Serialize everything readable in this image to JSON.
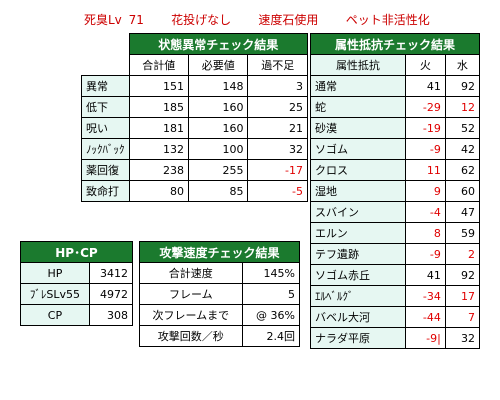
{
  "caption": {
    "char": "死臭Lv 71",
    "opt1": "花投げなし",
    "opt2": "速度石使用",
    "opt3": "ペット非活性化"
  },
  "status": {
    "title": "状態異常チェック結果",
    "headers": [
      "",
      "合計値",
      "必要値",
      "過不足"
    ],
    "rows": [
      {
        "name": "異常",
        "total": "151",
        "need": "148",
        "diff": "3",
        "neg": false
      },
      {
        "name": "低下",
        "total": "185",
        "need": "160",
        "diff": "25",
        "neg": false
      },
      {
        "name": "呪い",
        "total": "181",
        "need": "160",
        "diff": "21",
        "neg": false
      },
      {
        "name": "ﾉｯｸﾊﾞｯｸ",
        "total": "132",
        "need": "100",
        "diff": "32",
        "neg": false
      },
      {
        "name": "薬回復",
        "total": "238",
        "need": "255",
        "diff": "-17",
        "neg": true
      },
      {
        "name": "致命打",
        "total": "80",
        "need": "85",
        "diff": "-5",
        "neg": true
      }
    ]
  },
  "resist": {
    "title": "属性抵抗チェック結果",
    "headers": [
      "属性抵抗",
      "火",
      "水"
    ],
    "rows": [
      {
        "name": "通常",
        "fire": "41",
        "water": "92",
        "fneg": false,
        "wneg": false
      },
      {
        "name": "蛇",
        "fire": "-29",
        "water": "12",
        "fneg": true,
        "wneg": true
      },
      {
        "name": "砂漠",
        "fire": "-19",
        "water": "52",
        "fneg": true,
        "wneg": false
      },
      {
        "name": "ソゴム",
        "fire": "-9",
        "water": "42",
        "fneg": true,
        "wneg": false
      },
      {
        "name": "クロス",
        "fire": "11",
        "water": "62",
        "fneg": true,
        "wneg": false
      },
      {
        "name": "湿地",
        "fire": "9",
        "water": "60",
        "fneg": true,
        "wneg": false
      },
      {
        "name": "スバイン",
        "fire": "-4",
        "water": "47",
        "fneg": true,
        "wneg": false
      },
      {
        "name": "エルン",
        "fire": "8",
        "water": "59",
        "fneg": true,
        "wneg": false
      },
      {
        "name": "テフ遺跡",
        "fire": "-9",
        "water": "2",
        "fneg": true,
        "wneg": true
      },
      {
        "name": "ソゴム赤丘",
        "fire": "41",
        "water": "92",
        "fneg": false,
        "wneg": false
      },
      {
        "name": "ｴﾙﾍﾞﾙｸﾞ",
        "fire": "-34",
        "water": "17",
        "fneg": true,
        "wneg": true
      },
      {
        "name": "バベル大河",
        "fire": "-44",
        "water": "7",
        "fneg": true,
        "wneg": true
      },
      {
        "name": "ナラダ平原",
        "fire": "-9|",
        "water": "32",
        "fneg": true,
        "wneg": false
      }
    ]
  },
  "hpcp": {
    "title": "HP･CP",
    "rows": [
      {
        "name": "HP",
        "value": "3412"
      },
      {
        "name": "ﾌﾞﾚSLv55",
        "value": "4972"
      },
      {
        "name": "CP",
        "value": "308"
      }
    ]
  },
  "speed": {
    "title": "攻撃速度チェック結果",
    "rows": [
      {
        "name": "合計速度",
        "value": "145%"
      },
      {
        "name": "フレーム",
        "value": "5"
      },
      {
        "name": "次フレームまで",
        "value": "@ 36%"
      },
      {
        "name": "攻撃回数／秒",
        "value": "2.4回"
      }
    ]
  },
  "colors": {
    "header_bg": "#1b7a2e",
    "label_bg": "#e6f7f2",
    "negative": "#e00000"
  }
}
